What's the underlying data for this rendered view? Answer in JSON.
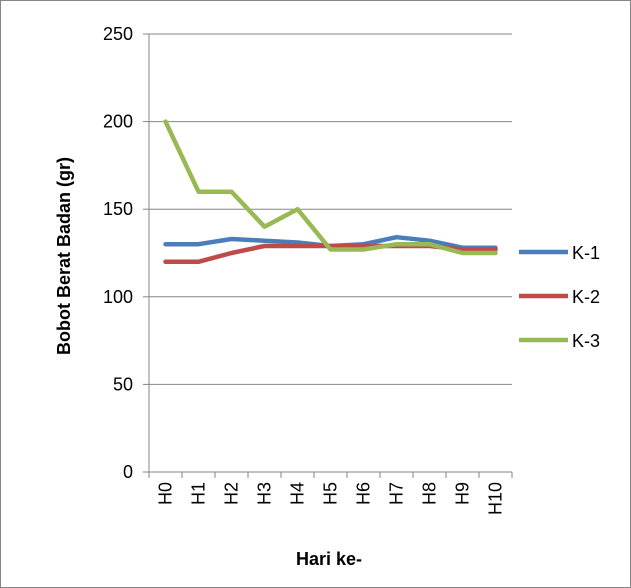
{
  "chart_data": {
    "type": "line",
    "categories": [
      "H0",
      "H1",
      "H2",
      "H3",
      "H4",
      "H5",
      "H6",
      "H7",
      "H8",
      "H9",
      "H10"
    ],
    "series": [
      {
        "name": "K-1",
        "color": "#4a7ebb",
        "values": [
          130,
          130,
          133,
          132,
          131,
          129,
          130,
          134,
          132,
          128,
          128
        ]
      },
      {
        "name": "K-2",
        "color": "#be4b48",
        "values": [
          120,
          120,
          125,
          129,
          129,
          129,
          129,
          129,
          129,
          127,
          127
        ]
      },
      {
        "name": "K-3",
        "color": "#98b954",
        "values": [
          200,
          160,
          160,
          140,
          150,
          127,
          127,
          130,
          130,
          125,
          125
        ]
      }
    ],
    "xlabel": "Hari ke-",
    "ylabel": "Bobot Berat Badan (gr)",
    "ylim": [
      0,
      250
    ],
    "yticks": [
      0,
      50,
      100,
      150,
      200,
      250
    ],
    "grid": true,
    "legend_position": "right"
  }
}
